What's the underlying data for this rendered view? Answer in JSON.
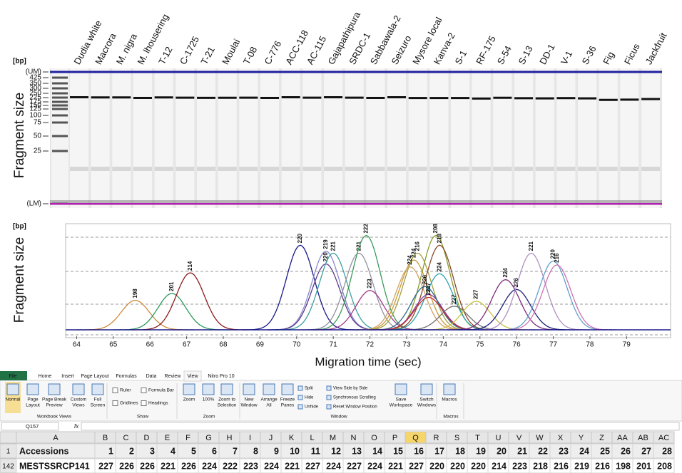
{
  "gel": {
    "unit": "[bp]",
    "axis_label": "Fragment size",
    "ladder_sizes": [
      "(UM)",
      425,
      350,
      300,
      250,
      225,
      175,
      150,
      125,
      100,
      75,
      50,
      25,
      "(LM)"
    ],
    "lanes": [
      "Dudia white",
      "Macrora",
      "M. nigra",
      "M. lhousering",
      "T-12",
      "C-1725",
      "T-21",
      "Moulai",
      "T-08",
      "C-776",
      "ACC-118",
      "AC-115",
      "Gajapathipura",
      "SRDC-1",
      "Sabbawala-2",
      "Seizuro",
      "Mysore local",
      "Kanva-2",
      "S-1",
      "RF-175",
      "S-54",
      "S-13",
      "DD-1",
      "V-1",
      "S-36",
      "Fig",
      "Ficus",
      "Jackfruit"
    ]
  },
  "chart_data": {
    "type": "electropherogram",
    "y_unit": "[bp]",
    "y_label": "Fragment size",
    "x_label": "Migration time (sec)",
    "xlim": [
      63.7,
      80.2
    ],
    "xticks": [
      64,
      65,
      66,
      67,
      68,
      69,
      70,
      71,
      72,
      73,
      74,
      75,
      76,
      77,
      78,
      79
    ],
    "ylim": [
      0,
      100
    ],
    "peaks": [
      {
        "label": "198",
        "time": 65.6,
        "height": 30,
        "color": "#d08a3a",
        "label_color": "#d01010"
      },
      {
        "label": "201",
        "time": 66.6,
        "height": 37,
        "color": "#2a9a5a"
      },
      {
        "label": "214",
        "time": 67.1,
        "height": 58,
        "color": "#8b1a1a"
      },
      {
        "label": "220",
        "time": 70.1,
        "height": 86,
        "color": "#1a1a8a"
      },
      {
        "label": "219",
        "time": 70.8,
        "height": 80,
        "color": "#8a8ad0"
      },
      {
        "label": "220",
        "time": 70.8,
        "height": 67,
        "color": "#5a3a8a"
      },
      {
        "label": "221",
        "time": 71.0,
        "height": 78,
        "color": "#3aa0a0"
      },
      {
        "label": "221",
        "time": 71.7,
        "height": 78,
        "color": "#9090a0"
      },
      {
        "label": "222",
        "time": 71.9,
        "height": 96,
        "color": "#3a9a5a"
      },
      {
        "label": "223",
        "time": 72.0,
        "height": 40,
        "color": "#a03a8a"
      },
      {
        "label": "224",
        "time": 73.2,
        "height": 71,
        "color": "#c89a3a",
        "label_color": "#d01010"
      },
      {
        "label": "216",
        "time": 73.3,
        "height": 78,
        "color": "#a0a040"
      },
      {
        "label": "224",
        "time": 73.1,
        "height": 64,
        "color": "#d0a060"
      },
      {
        "label": "208",
        "time": 73.8,
        "height": 96,
        "color": "#8a9a2a"
      },
      {
        "label": "218",
        "time": 73.9,
        "height": 86,
        "color": "#8a4a2a"
      },
      {
        "label": "224",
        "time": 73.9,
        "height": 57,
        "color": "#2aa0b0"
      },
      {
        "label": "227",
        "time": 73.6,
        "height": 36,
        "color": "#8a3aa0"
      },
      {
        "label": "226",
        "time": 73.5,
        "height": 44,
        "color": "#2a6a8a"
      },
      {
        "label": "220",
        "time": 73.6,
        "height": 33,
        "color": "#c03030"
      },
      {
        "label": "227",
        "time": 74.3,
        "height": 24,
        "color": "#707070"
      },
      {
        "label": "227",
        "time": 74.9,
        "height": 29,
        "color": "#c8c040"
      },
      {
        "label": "224",
        "time": 75.7,
        "height": 51,
        "color": "#7a2a7a"
      },
      {
        "label": "226",
        "time": 76.0,
        "height": 41,
        "color": "#20207a"
      },
      {
        "label": "221",
        "time": 76.4,
        "height": 78,
        "color": "#b090c0"
      },
      {
        "label": "220",
        "time": 77.0,
        "height": 70,
        "color": "#60a0d0"
      },
      {
        "label": "216",
        "time": 77.1,
        "height": 66,
        "color": "#d070b0"
      }
    ]
  },
  "ribbon": {
    "tabs": [
      "File",
      "Home",
      "Insert",
      "Page Layout",
      "Formulas",
      "Data",
      "Review",
      "View",
      "Nitro Pro 10"
    ],
    "groups": [
      {
        "label": "Workbook Views",
        "items": [
          [
            "Normal"
          ],
          [
            "Page",
            "Layout"
          ],
          [
            "Page Break",
            "Preview"
          ],
          [
            "Custom",
            "Views"
          ],
          [
            "Full",
            "Screen"
          ]
        ]
      },
      {
        "label": "Show",
        "checks": [
          "Ruler",
          "Formula Bar",
          "Gridlines",
          "Headings"
        ]
      },
      {
        "label": "Zoom",
        "items": [
          [
            "Zoom"
          ],
          [
            "100%"
          ],
          [
            "Zoom to",
            "Selection"
          ]
        ]
      },
      {
        "label": "Window",
        "items": [
          [
            "New",
            "Window"
          ],
          [
            "Arrange",
            "All"
          ],
          [
            "Freeze",
            "Panes"
          ],
          [
            "Save",
            "Workspace"
          ],
          [
            "Switch",
            "Windows"
          ]
        ],
        "small": [
          "Split",
          "Hide",
          "Unhide",
          "View Side by Side",
          "Synchronous Scrolling",
          "Reset Window Position"
        ]
      },
      {
        "label": "Macros",
        "items": [
          [
            "Macros"
          ]
        ]
      }
    ]
  },
  "spreadsheet": {
    "name_box": "Q157",
    "fx": "fx",
    "selected_column": "Q",
    "columns": [
      "A",
      "B",
      "C",
      "D",
      "E",
      "F",
      "G",
      "H",
      "I",
      "J",
      "K",
      "L",
      "M",
      "N",
      "O",
      "P",
      "Q",
      "R",
      "S",
      "T",
      "U",
      "V",
      "W",
      "X",
      "Y",
      "Z",
      "AA",
      "AB",
      "AC"
    ],
    "rows": [
      {
        "row_number": 1,
        "cells": [
          "Accessions",
          1,
          2,
          3,
          4,
          5,
          6,
          7,
          8,
          9,
          10,
          11,
          12,
          13,
          14,
          15,
          16,
          17,
          18,
          19,
          20,
          21,
          22,
          23,
          24,
          25,
          26,
          27,
          28
        ]
      },
      {
        "row_number": 142,
        "highlight_color": "#e8141c",
        "cells": [
          "MESTSSRCP141",
          227,
          226,
          226,
          221,
          226,
          224,
          222,
          223,
          224,
          221,
          227,
          224,
          227,
          224,
          221,
          227,
          220,
          220,
          220,
          214,
          223,
          218,
          216,
          219,
          216,
          198,
          201,
          208
        ]
      }
    ]
  }
}
